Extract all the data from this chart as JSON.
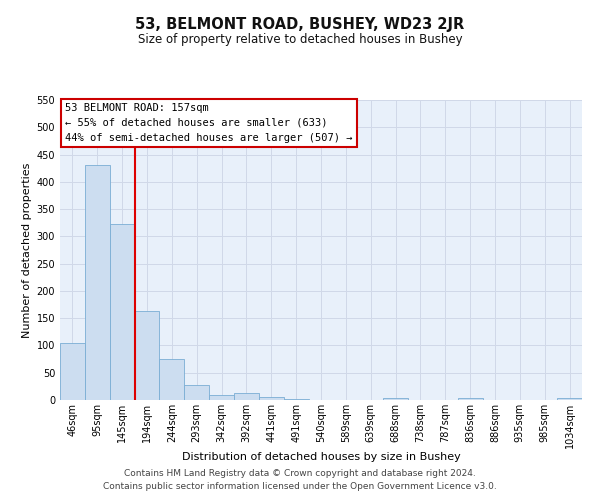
{
  "title": "53, BELMONT ROAD, BUSHEY, WD23 2JR",
  "subtitle": "Size of property relative to detached houses in Bushey",
  "xlabel": "Distribution of detached houses by size in Bushey",
  "ylabel": "Number of detached properties",
  "bar_labels": [
    "46sqm",
    "95sqm",
    "145sqm",
    "194sqm",
    "244sqm",
    "293sqm",
    "342sqm",
    "392sqm",
    "441sqm",
    "491sqm",
    "540sqm",
    "589sqm",
    "639sqm",
    "688sqm",
    "738sqm",
    "787sqm",
    "836sqm",
    "886sqm",
    "935sqm",
    "985sqm",
    "1034sqm"
  ],
  "bar_values": [
    105,
    430,
    323,
    163,
    75,
    27,
    10,
    13,
    5,
    2,
    0,
    0,
    0,
    3,
    0,
    0,
    3,
    0,
    0,
    0,
    3
  ],
  "bar_color": "#ccddf0",
  "bar_edge_color": "#7aadd4",
  "vline_x": 2.5,
  "vline_color": "#dd0000",
  "ylim": [
    0,
    550
  ],
  "yticks": [
    0,
    50,
    100,
    150,
    200,
    250,
    300,
    350,
    400,
    450,
    500,
    550
  ],
  "annotation_title": "53 BELMONT ROAD: 157sqm",
  "annotation_line1": "← 55% of detached houses are smaller (633)",
  "annotation_line2": "44% of semi-detached houses are larger (507) →",
  "annotation_box_color": "#ffffff",
  "annotation_box_edge": "#cc0000",
  "footer1": "Contains HM Land Registry data © Crown copyright and database right 2024.",
  "footer2": "Contains public sector information licensed under the Open Government Licence v3.0.",
  "bg_color": "#e8f0fa",
  "fig_bg": "#ffffff",
  "grid_color": "#d0d8e8",
  "title_fontsize": 10.5,
  "subtitle_fontsize": 8.5,
  "label_fontsize": 8,
  "tick_fontsize": 7,
  "footer_fontsize": 6.5,
  "ann_fontsize": 7.5
}
